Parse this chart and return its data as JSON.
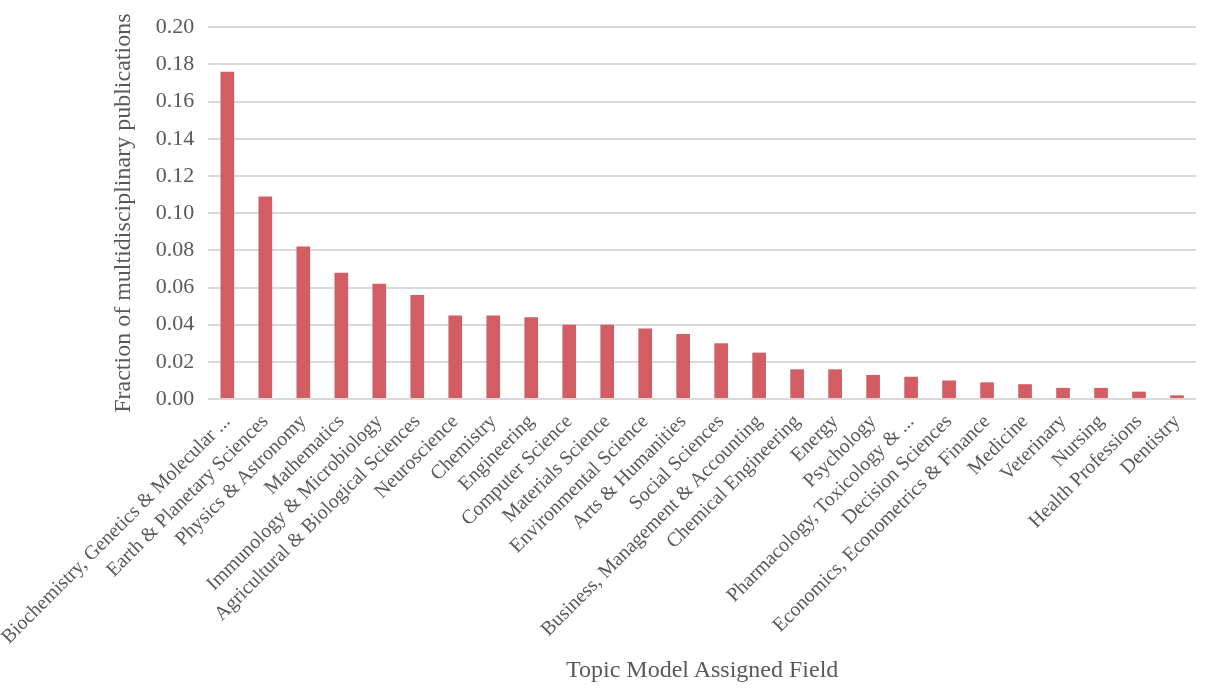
{
  "chart_data": {
    "type": "bar",
    "xlabel": "Topic Model Assigned Field",
    "ylabel": "Fraction of multidisciplinary publications",
    "categories": [
      "Biochemistry, Genetics & Molecular ...",
      "Earth & Planetary Sciences",
      "Physics & Astronomy",
      "Mathematics",
      "Immunology & Microbiology",
      "Agricultural & Biological Sciences",
      "Neuroscience",
      "Chemistry",
      "Engineering",
      "Computer Science",
      "Materials Science",
      "Environmental Science",
      "Arts & Humanities",
      "Social Sciences",
      "Business, Management & Accounting",
      "Chemical Engineering",
      "Energy",
      "Psychology",
      "Pharmacology, Toxicology & ...",
      "Decision Sciences",
      "Economics, Econometrics & Finance",
      "Medicine",
      "Veterinary",
      "Nursing",
      "Health Professions",
      "Dentistry"
    ],
    "values": [
      0.176,
      0.109,
      0.082,
      0.068,
      0.062,
      0.056,
      0.045,
      0.045,
      0.044,
      0.04,
      0.04,
      0.038,
      0.035,
      0.03,
      0.025,
      0.016,
      0.016,
      0.013,
      0.012,
      0.01,
      0.009,
      0.008,
      0.006,
      0.006,
      0.004,
      0.002
    ],
    "color": "#d45d63",
    "ylim": [
      0,
      0.2
    ],
    "yticks": [
      {
        "value": 0,
        "label": "0.00"
      },
      {
        "value": 0.02,
        "label": "0.02"
      },
      {
        "value": 0.04,
        "label": "0.04"
      },
      {
        "value": 0.06,
        "label": "0.06"
      },
      {
        "value": 0.08,
        "label": "0.08"
      },
      {
        "value": 0.1,
        "label": "0.10"
      },
      {
        "value": 0.12,
        "label": "0.12"
      },
      {
        "value": 0.14,
        "label": "0.14"
      },
      {
        "value": 0.16,
        "label": "0.16"
      },
      {
        "value": 0.18,
        "label": "0.18"
      },
      {
        "value": 0.2,
        "label": "0.20"
      }
    ],
    "grid": "y",
    "legend": false
  }
}
